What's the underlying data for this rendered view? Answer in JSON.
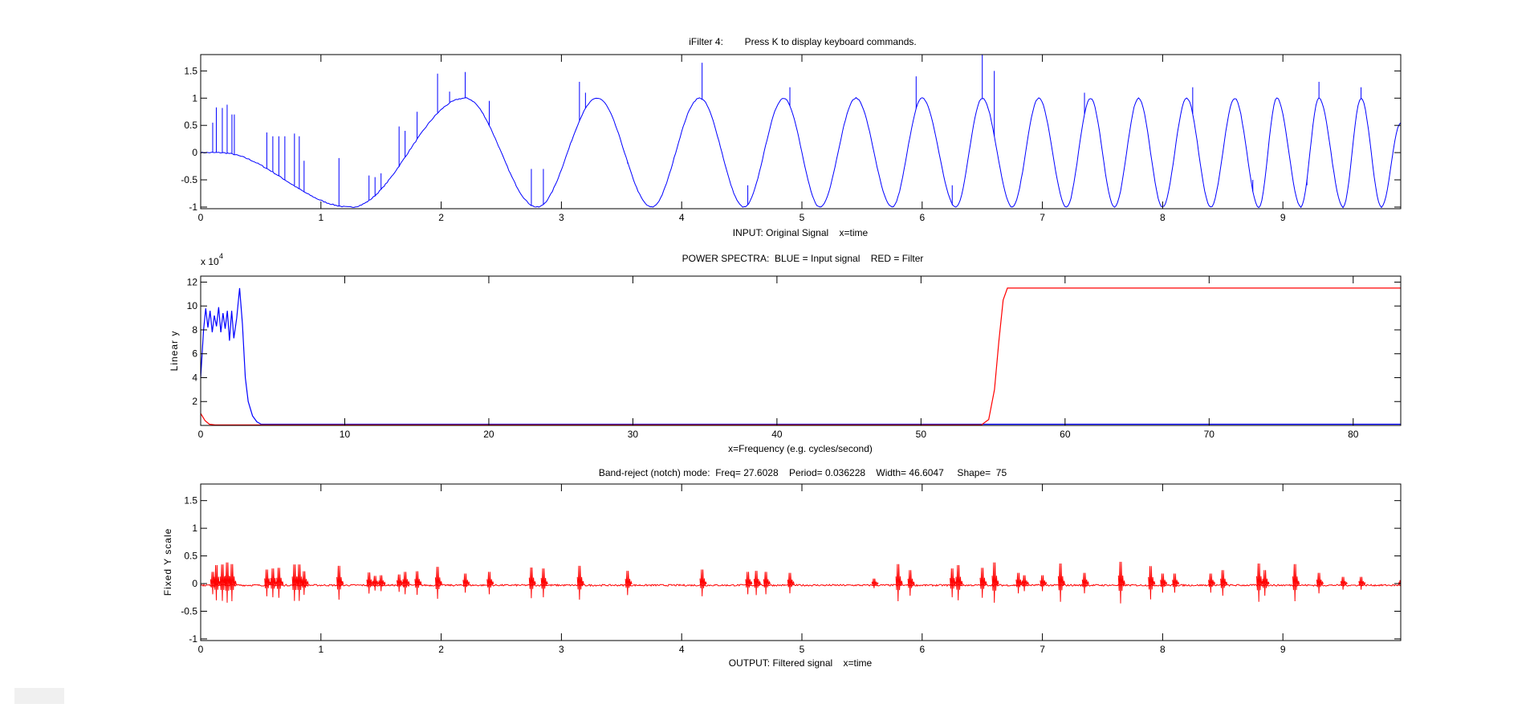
{
  "chart_data": [
    {
      "type": "line",
      "title": "iFilter 4:        Press K to display keyboard commands.",
      "xlabel": "INPUT: Original Signal    x=time",
      "ylabel": "",
      "xlim": [
        0,
        9.98
      ],
      "ylim": [
        -1.03,
        1.8
      ],
      "xticks": [
        "0",
        "1",
        "2",
        "3",
        "4",
        "5",
        "6",
        "7",
        "8",
        "9"
      ],
      "yticks": [
        "-1",
        "-0.5",
        "0",
        "0.5",
        "1",
        "1.5"
      ],
      "series": [
        {
          "name": "Input signal",
          "color": "#0000ff",
          "extrema": [
            [
              0,
              0
            ],
            [
              0.15,
              0
            ],
            [
              1.25,
              -1
            ],
            [
              2.2,
              1
            ],
            [
              2.8,
              -1
            ],
            [
              3.3,
              1
            ],
            [
              3.75,
              -1
            ],
            [
              4.15,
              1
            ],
            [
              4.52,
              -1
            ],
            [
              4.85,
              1
            ],
            [
              5.15,
              -1
            ],
            [
              5.45,
              1
            ],
            [
              5.75,
              -1
            ],
            [
              6.0,
              1
            ],
            [
              6.28,
              -1
            ],
            [
              6.5,
              1
            ],
            [
              6.75,
              -1
            ],
            [
              6.97,
              1
            ],
            [
              7.2,
              -1
            ],
            [
              7.4,
              1
            ],
            [
              7.6,
              -1
            ],
            [
              7.8,
              1
            ],
            [
              8.0,
              -1
            ],
            [
              8.2,
              1
            ],
            [
              8.4,
              -1
            ],
            [
              8.6,
              1
            ],
            [
              8.8,
              -1
            ],
            [
              8.95,
              1
            ],
            [
              9.15,
              -1
            ],
            [
              9.3,
              1
            ],
            [
              9.5,
              -1
            ],
            [
              9.65,
              1
            ],
            [
              9.82,
              -1
            ],
            [
              9.98,
              0.55
            ]
          ],
          "spikes": [
            [
              0.1,
              0.55
            ],
            [
              0.13,
              0.83
            ],
            [
              0.18,
              0.82
            ],
            [
              0.22,
              0.88
            ],
            [
              0.26,
              0.7
            ],
            [
              0.28,
              0.7
            ],
            [
              0.55,
              0.37
            ],
            [
              0.6,
              0.3
            ],
            [
              0.65,
              0.3
            ],
            [
              0.7,
              0.3
            ],
            [
              0.78,
              0.35
            ],
            [
              0.82,
              0.3
            ],
            [
              0.86,
              -0.15
            ],
            [
              1.15,
              -0.1
            ],
            [
              1.4,
              -0.42
            ],
            [
              1.45,
              -0.45
            ],
            [
              1.5,
              -0.38
            ],
            [
              1.65,
              0.48
            ],
            [
              1.7,
              0.4
            ],
            [
              1.8,
              0.75
            ],
            [
              1.97,
              1.45
            ],
            [
              2.07,
              1.12
            ],
            [
              2.2,
              1.48
            ],
            [
              2.4,
              0.95
            ],
            [
              2.75,
              -0.3
            ],
            [
              2.85,
              -0.3
            ],
            [
              3.15,
              1.3
            ],
            [
              3.2,
              1.1
            ],
            [
              3.55,
              -0.2
            ],
            [
              4.17,
              1.65
            ],
            [
              4.55,
              -0.6
            ],
            [
              4.9,
              1.2
            ],
            [
              5.95,
              1.4
            ],
            [
              6.5,
              1.8
            ],
            [
              6.6,
              1.5
            ],
            [
              7.35,
              1.1
            ],
            [
              8.25,
              1.2
            ],
            [
              9.3,
              1.3
            ],
            [
              9.65,
              1.2
            ],
            [
              9.2,
              -0.6
            ],
            [
              8.75,
              -0.5
            ],
            [
              6.25,
              -0.6
            ]
          ]
        }
      ]
    },
    {
      "type": "line",
      "title": "POWER SPECTRA:  BLUE = Input signal    RED = Filter",
      "xlabel": "x=Frequency (e.g. cycles/second)",
      "ylabel": "Linear y",
      "y_multiplier": "x 10",
      "y_exponent": "4",
      "xlim": [
        0,
        83.3
      ],
      "ylim": [
        0,
        12.5
      ],
      "xticks": [
        "0",
        "10",
        "20",
        "30",
        "40",
        "50",
        "60",
        "70",
        "80"
      ],
      "yticks": [
        "2",
        "4",
        "6",
        "8",
        "10",
        "12"
      ],
      "series": [
        {
          "name": "Input signal",
          "color": "#0000ff",
          "points": [
            [
              0,
              4
            ],
            [
              0.2,
              8
            ],
            [
              0.35,
              9.8
            ],
            [
              0.5,
              8.2
            ],
            [
              0.65,
              9.6
            ],
            [
              0.8,
              7.8
            ],
            [
              0.95,
              9.2
            ],
            [
              1.1,
              8.3
            ],
            [
              1.25,
              9.9
            ],
            [
              1.4,
              7.8
            ],
            [
              1.55,
              9.4
            ],
            [
              1.7,
              8.1
            ],
            [
              1.85,
              9.6
            ],
            [
              2.0,
              7.1
            ],
            [
              2.15,
              9.6
            ],
            [
              2.3,
              7.3
            ],
            [
              2.5,
              9.0
            ],
            [
              2.7,
              11.5
            ],
            [
              2.9,
              8.5
            ],
            [
              3.1,
              4
            ],
            [
              3.3,
              2
            ],
            [
              3.6,
              0.8
            ],
            [
              3.9,
              0.3
            ],
            [
              4.2,
              0.1
            ],
            [
              83.3,
              0.1
            ]
          ]
        },
        {
          "name": "Filter",
          "color": "#ff0000",
          "points": [
            [
              0,
              1
            ],
            [
              0.3,
              0.4
            ],
            [
              0.6,
              0.1
            ],
            [
              1,
              0.05
            ],
            [
              54.2,
              0.05
            ],
            [
              54.7,
              0.5
            ],
            [
              55.1,
              3
            ],
            [
              55.4,
              7
            ],
            [
              55.7,
              10.5
            ],
            [
              56,
              11.5
            ],
            [
              83.3,
              11.5
            ]
          ]
        }
      ]
    },
    {
      "type": "line",
      "title": "Band-reject (notch) mode:  Freq= 27.6028    Period= 0.036228    Width= 46.6047     Shape=  75",
      "xlabel": "OUTPUT: Filtered signal    x=time",
      "ylabel": "Fixed Y scale",
      "xlim": [
        0,
        9.98
      ],
      "ylim": [
        -1.03,
        1.8
      ],
      "xticks": [
        "0",
        "1",
        "2",
        "3",
        "4",
        "5",
        "6",
        "7",
        "8",
        "9"
      ],
      "yticks": [
        "-1",
        "-0.5",
        "0",
        "0.5",
        "1",
        "1.5"
      ],
      "series": [
        {
          "name": "Filtered signal",
          "color": "#ff0000",
          "spikes": [
            [
              0.1,
              0.35
            ],
            [
              0.13,
              0.55
            ],
            [
              0.18,
              0.57
            ],
            [
              0.22,
              0.63
            ],
            [
              0.26,
              0.58
            ],
            [
              0.55,
              0.42
            ],
            [
              0.6,
              0.45
            ],
            [
              0.65,
              0.47
            ],
            [
              0.78,
              0.57
            ],
            [
              0.82,
              0.57
            ],
            [
              0.86,
              0.37
            ],
            [
              1.15,
              0.53
            ],
            [
              1.4,
              0.33
            ],
            [
              1.45,
              0.23
            ],
            [
              1.5,
              0.25
            ],
            [
              1.65,
              0.27
            ],
            [
              1.7,
              0.35
            ],
            [
              1.8,
              0.37
            ],
            [
              1.97,
              0.5
            ],
            [
              2.2,
              0.3
            ],
            [
              2.4,
              0.35
            ],
            [
              2.75,
              0.48
            ],
            [
              2.85,
              0.45
            ],
            [
              3.15,
              0.53
            ],
            [
              3.55,
              0.38
            ],
            [
              4.17,
              0.42
            ],
            [
              4.55,
              0.35
            ],
            [
              4.62,
              0.38
            ],
            [
              4.7,
              0.35
            ],
            [
              4.9,
              0.32
            ],
            [
              5.6,
              0.15
            ],
            [
              5.8,
              0.58
            ],
            [
              5.9,
              0.4
            ],
            [
              6.25,
              0.45
            ],
            [
              6.3,
              0.55
            ],
            [
              6.5,
              0.47
            ],
            [
              6.6,
              0.63
            ],
            [
              6.8,
              0.32
            ],
            [
              6.85,
              0.25
            ],
            [
              7.0,
              0.25
            ],
            [
              7.15,
              0.6
            ],
            [
              7.35,
              0.32
            ],
            [
              7.65,
              0.65
            ],
            [
              7.9,
              0.52
            ],
            [
              8.0,
              0.3
            ],
            [
              8.1,
              0.3
            ],
            [
              8.4,
              0.3
            ],
            [
              8.5,
              0.4
            ],
            [
              8.8,
              0.6
            ],
            [
              8.85,
              0.4
            ],
            [
              9.1,
              0.58
            ],
            [
              9.3,
              0.32
            ],
            [
              9.5,
              0.2
            ],
            [
              9.65,
              0.2
            ],
            [
              9.98,
              0.1
            ]
          ]
        }
      ]
    }
  ]
}
